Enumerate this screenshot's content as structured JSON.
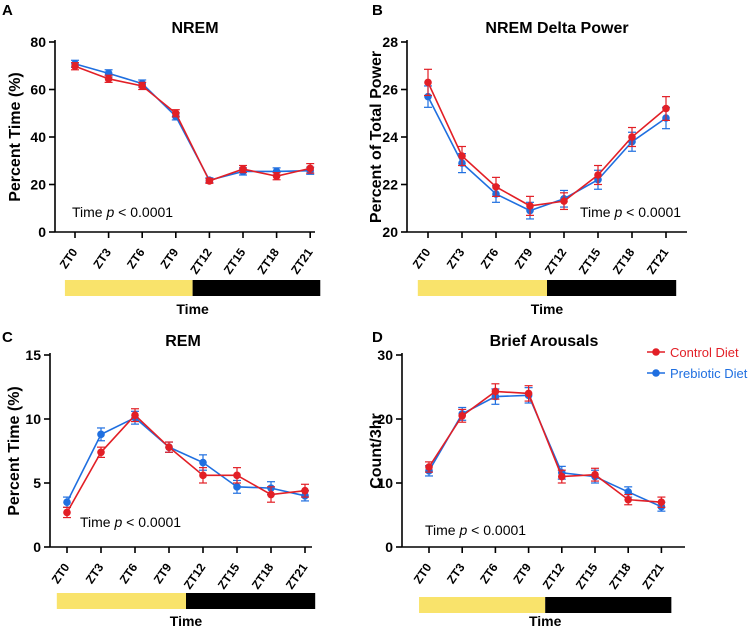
{
  "colors": {
    "control": "#e21f26",
    "prebiotic": "#1f6fe0",
    "light": "#f9e36b",
    "dark": "#000000"
  },
  "legend": {
    "control": "Control Diet",
    "prebiotic": "Prebiotic Diet"
  },
  "chart_data": [
    {
      "id": "A",
      "type": "line",
      "title": "NREM",
      "ylabel": "Percent Time (%)",
      "xlabel": "Time",
      "ylim": [
        0,
        80
      ],
      "yticks": [
        0,
        20,
        40,
        60,
        80
      ],
      "categories": [
        "ZT0",
        "ZT3",
        "ZT6",
        "ZT9",
        "ZT12",
        "ZT15",
        "ZT18",
        "ZT21"
      ],
      "series": [
        {
          "name": "Control Diet",
          "values": [
            69.8,
            64.5,
            61.5,
            50.0,
            21.5,
            26.5,
            23.5,
            26.8
          ],
          "errors": [
            1.5,
            1.5,
            1.5,
            1.5,
            1.0,
            1.5,
            1.5,
            2.0
          ]
        },
        {
          "name": "Prebiotic Diet",
          "values": [
            70.8,
            66.8,
            62.5,
            48.7,
            21.8,
            25.5,
            25.5,
            25.8
          ],
          "errors": [
            1.5,
            1.5,
            1.5,
            1.5,
            1.0,
            1.5,
            1.5,
            1.5
          ]
        }
      ],
      "annotation": {
        "before": "Time ",
        "p": "p",
        "after": " < 0.0001"
      }
    },
    {
      "id": "B",
      "type": "line",
      "title": "NREM Delta Power",
      "ylabel": "Percent of Total Power",
      "xlabel": "Time",
      "ylim": [
        20,
        28
      ],
      "yticks": [
        20,
        22,
        24,
        26,
        28
      ],
      "categories": [
        "ZT0",
        "ZT3",
        "ZT6",
        "ZT9",
        "ZT12",
        "ZT15",
        "ZT18",
        "ZT21"
      ],
      "series": [
        {
          "name": "Control Diet",
          "values": [
            26.3,
            23.2,
            21.9,
            21.1,
            21.3,
            22.4,
            24.0,
            25.2
          ],
          "errors": [
            0.55,
            0.4,
            0.4,
            0.4,
            0.35,
            0.4,
            0.4,
            0.5
          ]
        },
        {
          "name": "Prebiotic Diet",
          "values": [
            25.7,
            22.9,
            21.6,
            20.9,
            21.4,
            22.2,
            23.8,
            24.8
          ],
          "errors": [
            0.45,
            0.4,
            0.35,
            0.35,
            0.35,
            0.4,
            0.4,
            0.45
          ]
        }
      ],
      "annotation": {
        "before": "Time ",
        "p": "p",
        "after": " < 0.0001"
      }
    },
    {
      "id": "C",
      "type": "line",
      "title": "REM",
      "ylabel": "Percent Time (%)",
      "xlabel": "Time",
      "ylim": [
        0,
        15
      ],
      "yticks": [
        0,
        5,
        10,
        15
      ],
      "categories": [
        "ZT0",
        "ZT3",
        "ZT6",
        "ZT9",
        "ZT12",
        "ZT15",
        "ZT18",
        "ZT21"
      ],
      "series": [
        {
          "name": "Control Diet",
          "values": [
            2.7,
            7.4,
            10.3,
            7.8,
            5.6,
            5.6,
            4.1,
            4.4
          ],
          "errors": [
            0.4,
            0.4,
            0.5,
            0.4,
            0.6,
            0.6,
            0.6,
            0.5
          ]
        },
        {
          "name": "Prebiotic Diet",
          "values": [
            3.5,
            8.8,
            10.1,
            7.8,
            6.6,
            4.7,
            4.6,
            4.0
          ],
          "errors": [
            0.4,
            0.5,
            0.5,
            0.4,
            0.6,
            0.5,
            0.5,
            0.4
          ]
        }
      ],
      "annotation": {
        "before": "Time ",
        "p": "p",
        "after": " < 0.0001"
      }
    },
    {
      "id": "D",
      "type": "line",
      "title": "Brief Arousals",
      "ylabel": "Count/3hr",
      "xlabel": "Time",
      "ylim": [
        0,
        30
      ],
      "yticks": [
        0,
        10,
        20,
        30
      ],
      "categories": [
        "ZT0",
        "ZT3",
        "ZT6",
        "ZT9",
        "ZT12",
        "ZT15",
        "ZT18",
        "ZT21"
      ],
      "series": [
        {
          "name": "Control Diet",
          "values": [
            12.5,
            20.5,
            24.3,
            24.0,
            11.0,
            11.3,
            7.4,
            7.0
          ],
          "errors": [
            0.8,
            1.0,
            1.2,
            1.2,
            1.0,
            1.0,
            0.8,
            0.8
          ]
        },
        {
          "name": "Prebiotic Diet",
          "values": [
            11.9,
            20.8,
            23.5,
            23.7,
            11.6,
            11.0,
            8.6,
            6.3
          ],
          "errors": [
            0.8,
            1.0,
            1.2,
            1.2,
            1.0,
            1.0,
            0.8,
            0.7
          ]
        }
      ],
      "annotation": {
        "before": "Time ",
        "p": "p",
        "after": " < 0.0001"
      }
    }
  ]
}
